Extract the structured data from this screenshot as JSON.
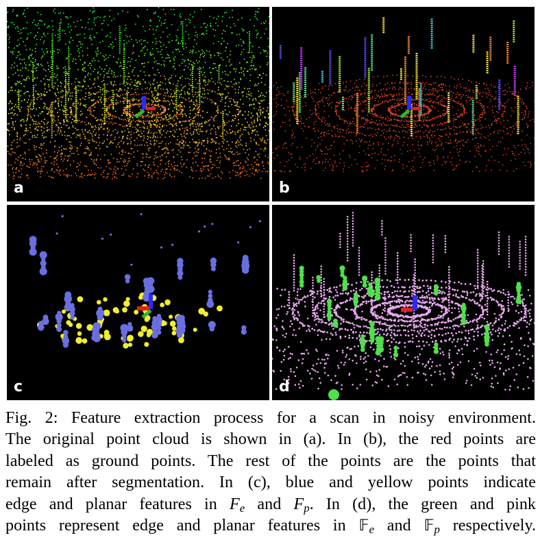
{
  "figure": {
    "panels": [
      {
        "id": "a",
        "label": "a",
        "style": "rainbow"
      },
      {
        "id": "b",
        "label": "b",
        "style": "segmented"
      },
      {
        "id": "c",
        "label": "c",
        "style": "features-sparse"
      },
      {
        "id": "d",
        "label": "d",
        "style": "features-dense"
      }
    ],
    "colors": {
      "background": "#000000",
      "ground": "#e5431f",
      "edge_blue": "#6a6fe0",
      "planar_yellow": "#f2ee2e",
      "edge_green": "#4fe04a",
      "planar_pink": "#e8a8ee",
      "axis_blue": "#2a2aff",
      "axis_green": "#2db82d",
      "axis_red": "#e02020"
    }
  },
  "caption": {
    "line1": "Fig. 2: Feature extraction process for a scan in noisy environment.",
    "line2": "The original point cloud is shown in (a). In (b), the red points are",
    "line3": "labeled as ground points. The rest of the points are the points that",
    "line4": "remain after segmentation. In (c), blue and yellow points indicate",
    "line5_text": "edge and planar features in",
    "line5_and": "and",
    "line6_pre": "points represent edge and planar features in",
    "line6_and": "and",
    "line6_post": "respectively.",
    "sym_F": "F",
    "sym_BB": "𝔽",
    "sub_e": "e",
    "sub_p": "p"
  }
}
